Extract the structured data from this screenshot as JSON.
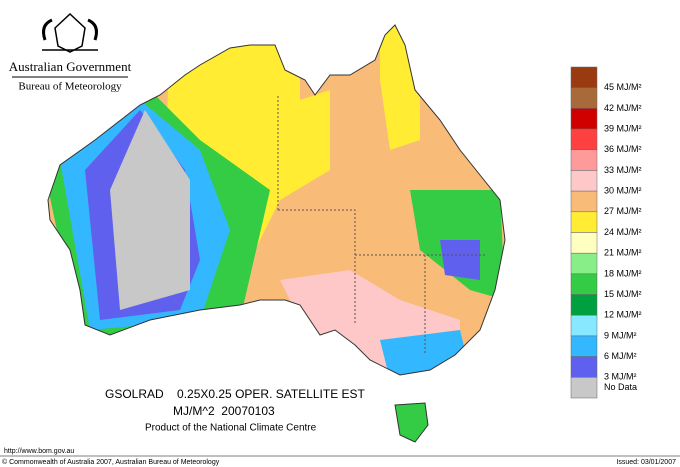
{
  "header": {
    "title": "Australian Government",
    "subtitle": "Bureau of Meteorology"
  },
  "legend": {
    "items": [
      {
        "label": "45 MJ/M²",
        "color": "#9a3a10"
      },
      {
        "label": "42 MJ/M²",
        "color": "#a86a3a"
      },
      {
        "label": "39 MJ/M²",
        "color": "#d00000"
      },
      {
        "label": "36 MJ/M²",
        "color": "#ff4040"
      },
      {
        "label": "33 MJ/M²",
        "color": "#ff9a9a"
      },
      {
        "label": "30 MJ/M²",
        "color": "#ffc8c8"
      },
      {
        "label": "27 MJ/M²",
        "color": "#f8bc78"
      },
      {
        "label": "24 MJ/M²",
        "color": "#ffec33"
      },
      {
        "label": "21 MJ/M²",
        "color": "#ffffc0"
      },
      {
        "label": "18 MJ/M²",
        "color": "#88ee88"
      },
      {
        "label": "15 MJ/M²",
        "color": "#33cc44"
      },
      {
        "label": "12 MJ/M²",
        "color": "#00a040"
      },
      {
        "label": "9 MJ/M²",
        "color": "#88e8ff"
      },
      {
        "label": "6 MJ/M²",
        "color": "#33b8ff"
      },
      {
        "label": "3 MJ/M²",
        "color": "#6060ee"
      },
      {
        "label": "No Data",
        "color": "#c8c8c8"
      }
    ]
  },
  "caption": {
    "product": "GSOLRAD    0.25X0.25 OPER. SATELLITE EST",
    "units_date": "MJ/M^2  20070103",
    "source": "Product of the National Climate Centre"
  },
  "footer": {
    "url": "http://www.bom.gov.au",
    "copyright": "© Commonwealth of Australia 2007, Australian Bureau of Meteorology",
    "issued": "Issued: 03/01/2007"
  }
}
